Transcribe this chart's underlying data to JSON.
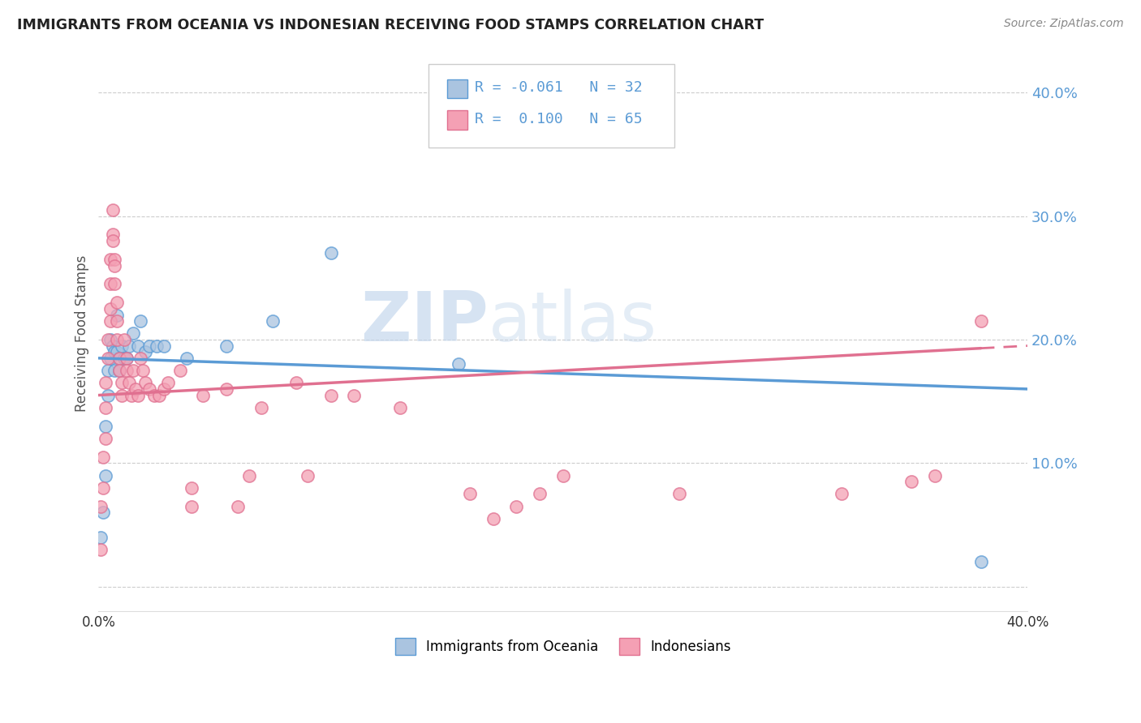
{
  "title": "IMMIGRANTS FROM OCEANIA VS INDONESIAN RECEIVING FOOD STAMPS CORRELATION CHART",
  "source": "Source: ZipAtlas.com",
  "ylabel": "Receiving Food Stamps",
  "xlim": [
    0.0,
    0.4
  ],
  "ylim": [
    -0.02,
    0.43
  ],
  "color_blue": "#aac4e0",
  "color_pink": "#f4a0b4",
  "line_blue": "#5b9bd5",
  "line_pink": "#e07090",
  "watermark_zip": "ZIP",
  "watermark_atlas": "atlas",
  "blue_points": [
    [
      0.001,
      0.04
    ],
    [
      0.002,
      0.06
    ],
    [
      0.003,
      0.09
    ],
    [
      0.003,
      0.13
    ],
    [
      0.004,
      0.155
    ],
    [
      0.004,
      0.175
    ],
    [
      0.005,
      0.2
    ],
    [
      0.005,
      0.185
    ],
    [
      0.006,
      0.195
    ],
    [
      0.007,
      0.19
    ],
    [
      0.007,
      0.175
    ],
    [
      0.008,
      0.22
    ],
    [
      0.008,
      0.19
    ],
    [
      0.009,
      0.185
    ],
    [
      0.009,
      0.175
    ],
    [
      0.01,
      0.195
    ],
    [
      0.011,
      0.185
    ],
    [
      0.012,
      0.185
    ],
    [
      0.013,
      0.195
    ],
    [
      0.015,
      0.205
    ],
    [
      0.017,
      0.195
    ],
    [
      0.018,
      0.215
    ],
    [
      0.02,
      0.19
    ],
    [
      0.022,
      0.195
    ],
    [
      0.025,
      0.195
    ],
    [
      0.028,
      0.195
    ],
    [
      0.038,
      0.185
    ],
    [
      0.055,
      0.195
    ],
    [
      0.075,
      0.215
    ],
    [
      0.1,
      0.27
    ],
    [
      0.155,
      0.18
    ],
    [
      0.38,
      0.02
    ]
  ],
  "pink_points": [
    [
      0.001,
      0.03
    ],
    [
      0.001,
      0.065
    ],
    [
      0.002,
      0.08
    ],
    [
      0.002,
      0.105
    ],
    [
      0.003,
      0.12
    ],
    [
      0.003,
      0.145
    ],
    [
      0.003,
      0.165
    ],
    [
      0.004,
      0.185
    ],
    [
      0.004,
      0.2
    ],
    [
      0.005,
      0.215
    ],
    [
      0.005,
      0.225
    ],
    [
      0.005,
      0.245
    ],
    [
      0.005,
      0.265
    ],
    [
      0.006,
      0.285
    ],
    [
      0.006,
      0.305
    ],
    [
      0.006,
      0.28
    ],
    [
      0.007,
      0.265
    ],
    [
      0.007,
      0.26
    ],
    [
      0.007,
      0.245
    ],
    [
      0.008,
      0.23
    ],
    [
      0.008,
      0.215
    ],
    [
      0.008,
      0.2
    ],
    [
      0.009,
      0.185
    ],
    [
      0.009,
      0.175
    ],
    [
      0.01,
      0.165
    ],
    [
      0.01,
      0.155
    ],
    [
      0.011,
      0.2
    ],
    [
      0.012,
      0.185
    ],
    [
      0.012,
      0.175
    ],
    [
      0.013,
      0.165
    ],
    [
      0.014,
      0.155
    ],
    [
      0.015,
      0.175
    ],
    [
      0.016,
      0.16
    ],
    [
      0.017,
      0.155
    ],
    [
      0.018,
      0.185
    ],
    [
      0.019,
      0.175
    ],
    [
      0.02,
      0.165
    ],
    [
      0.022,
      0.16
    ],
    [
      0.024,
      0.155
    ],
    [
      0.026,
      0.155
    ],
    [
      0.028,
      0.16
    ],
    [
      0.03,
      0.165
    ],
    [
      0.035,
      0.175
    ],
    [
      0.04,
      0.065
    ],
    [
      0.04,
      0.08
    ],
    [
      0.045,
      0.155
    ],
    [
      0.055,
      0.16
    ],
    [
      0.06,
      0.065
    ],
    [
      0.065,
      0.09
    ],
    [
      0.07,
      0.145
    ],
    [
      0.085,
      0.165
    ],
    [
      0.09,
      0.09
    ],
    [
      0.1,
      0.155
    ],
    [
      0.11,
      0.155
    ],
    [
      0.13,
      0.145
    ],
    [
      0.16,
      0.075
    ],
    [
      0.17,
      0.055
    ],
    [
      0.18,
      0.065
    ],
    [
      0.19,
      0.075
    ],
    [
      0.2,
      0.09
    ],
    [
      0.25,
      0.075
    ],
    [
      0.32,
      0.075
    ],
    [
      0.35,
      0.085
    ],
    [
      0.36,
      0.09
    ],
    [
      0.38,
      0.215
    ]
  ]
}
